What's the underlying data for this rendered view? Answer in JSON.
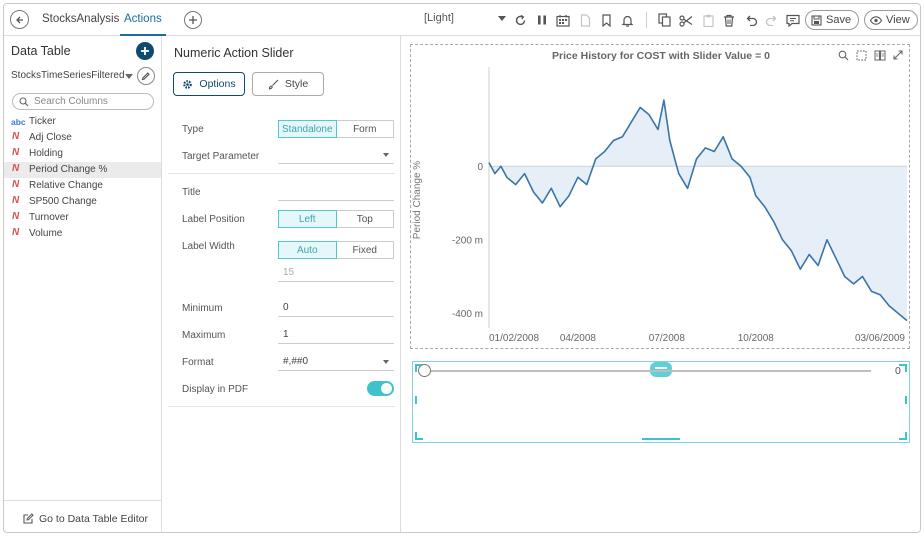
{
  "topbar": {
    "tabs": [
      {
        "label": "StocksAnalysis"
      },
      {
        "label": "Actions"
      }
    ],
    "theme": "[Light]",
    "save_label": "Save",
    "view_label": "View"
  },
  "left": {
    "title": "Data Table",
    "datasource": "StocksTimeSeriesFiltered",
    "search_placeholder": "Search Columns",
    "columns": [
      {
        "type_icon": "abc",
        "label": "Ticker"
      },
      {
        "type_icon": "N",
        "label": "Adj Close"
      },
      {
        "type_icon": "N",
        "label": "Holding"
      },
      {
        "type_icon": "N",
        "label": "Period Change %",
        "selected": true
      },
      {
        "type_icon": "N",
        "label": "Relative Change"
      },
      {
        "type_icon": "N",
        "label": "SP500 Change"
      },
      {
        "type_icon": "N",
        "label": "Turnover"
      },
      {
        "type_icon": "N",
        "label": "Volume"
      }
    ],
    "footer_label": "Go to Data Table Editor"
  },
  "middle": {
    "title": "Numeric Action Slider",
    "tabs": {
      "options": "Options",
      "style": "Style"
    },
    "type": {
      "label": "Type",
      "options": [
        "Standalone",
        "Form"
      ],
      "selected": "Standalone"
    },
    "target_parameter": {
      "label": "Target Parameter",
      "value": ""
    },
    "title_field": {
      "label": "Title",
      "value": ""
    },
    "label_position": {
      "label": "Label Position",
      "options": [
        "Left",
        "Top"
      ],
      "selected": "Left"
    },
    "label_width": {
      "label": "Label Width",
      "options": [
        "Auto",
        "Fixed"
      ],
      "selected": "Auto",
      "value": "15"
    },
    "minimum": {
      "label": "Minimum",
      "value": "0"
    },
    "maximum": {
      "label": "Maximum",
      "value": "1"
    },
    "format": {
      "label": "Format",
      "value": "#,##0"
    },
    "display_pdf": {
      "label": "Display in PDF",
      "enabled": true
    }
  },
  "chart_data": {
    "type": "area",
    "title": "Price History for COST with Slider Value = 0",
    "ylabel": "Period Change %",
    "yticks": [
      "0",
      "-200 m",
      "-400 m"
    ],
    "ytick_values": [
      0,
      -0.2,
      -0.4
    ],
    "xticks": [
      "01/02/2008",
      "04/2008",
      "07/2008",
      "10/2008",
      "03/06/2009"
    ],
    "xtick_values": [
      0,
      3,
      6,
      9,
      14.1
    ],
    "ylim": [
      -0.44,
      0.27
    ],
    "xlim": [
      0,
      14.1
    ],
    "baseline": 0,
    "series": [
      {
        "x": [
          0,
          0.2,
          0.4,
          0.6,
          0.9,
          1.2,
          1.5,
          1.8,
          2.1,
          2.4,
          2.7,
          3.0,
          3.3,
          3.6,
          3.9,
          4.2,
          4.5,
          4.8,
          5.1,
          5.4,
          5.7,
          5.9,
          6.1,
          6.4,
          6.7,
          7.0,
          7.3,
          7.6,
          7.9,
          8.2,
          8.5,
          8.8,
          9.0,
          9.3,
          9.6,
          9.9,
          10.2,
          10.5,
          10.8,
          11.1,
          11.4,
          11.7,
          12.0,
          12.3,
          12.6,
          12.9,
          13.2,
          13.5,
          13.8,
          14.1
        ],
        "y": [
          0.01,
          -0.02,
          0.0,
          -0.03,
          -0.05,
          -0.02,
          -0.07,
          -0.1,
          -0.06,
          -0.11,
          -0.08,
          -0.03,
          -0.05,
          0.02,
          0.04,
          0.07,
          0.08,
          0.12,
          0.16,
          0.14,
          0.1,
          0.18,
          0.07,
          -0.02,
          -0.06,
          0.02,
          0.05,
          0.04,
          0.08,
          0.02,
          0.0,
          -0.03,
          -0.08,
          -0.11,
          -0.15,
          -0.2,
          -0.23,
          -0.28,
          -0.24,
          -0.27,
          -0.2,
          -0.25,
          -0.3,
          -0.32,
          -0.3,
          -0.34,
          -0.35,
          -0.38,
          -0.4,
          -0.42
        ]
      }
    ],
    "line_color": "#3a74a8",
    "fill_color": "#e6eff7"
  },
  "slider": {
    "value_label": "0",
    "value_fraction": 0
  }
}
